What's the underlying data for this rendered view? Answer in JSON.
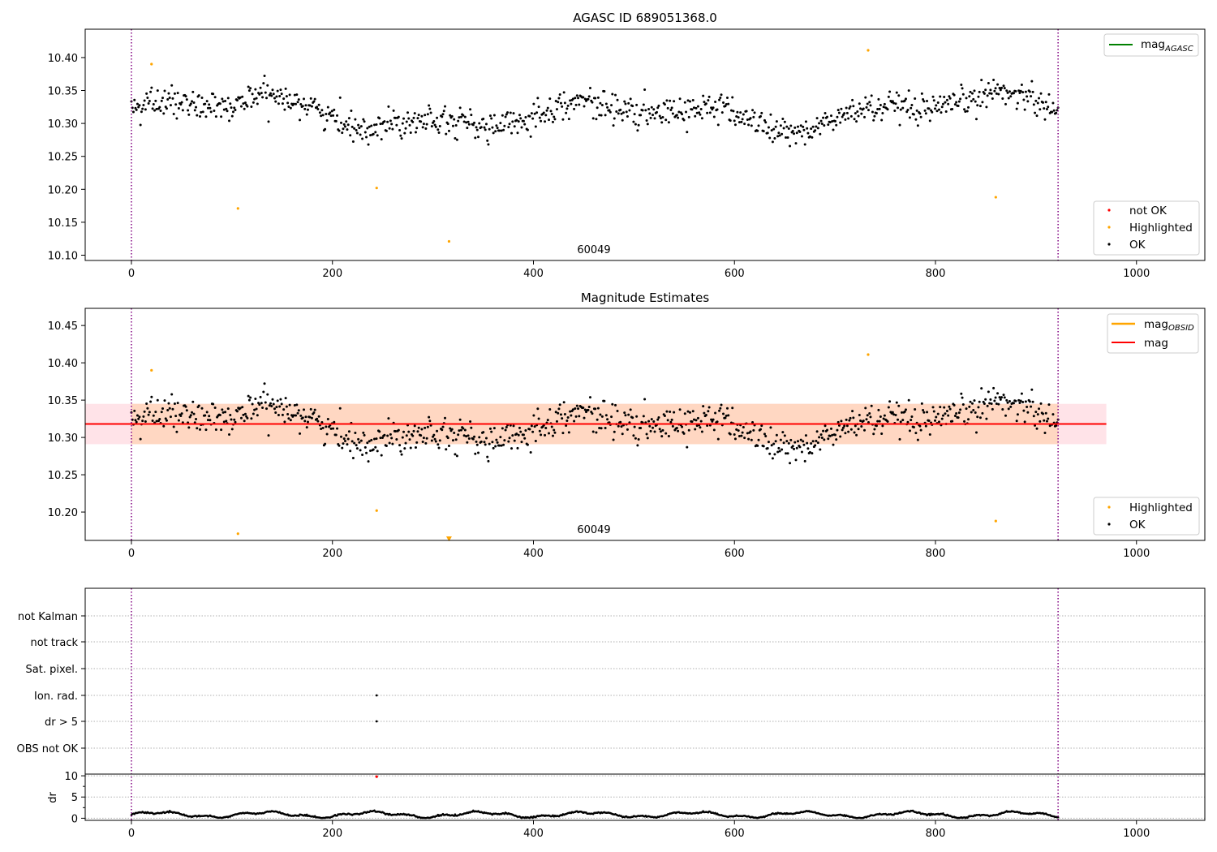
{
  "chart_data": [
    {
      "type": "scatter",
      "title": "AGASC ID 689051368.0",
      "xlim": [
        -46,
        1068
      ],
      "ylim": [
        10.092,
        10.443
      ],
      "xticks": [
        "0",
        "200",
        "400",
        "600",
        "800",
        "1000"
      ],
      "yticks": [
        "10.10",
        "10.15",
        "10.20",
        "10.25",
        "10.30",
        "10.35",
        "10.40"
      ],
      "obs_bounds": [
        0,
        922
      ],
      "obs_label": "60049",
      "obs_label_x": 460,
      "legend_top": [
        {
          "name": "mag",
          "sub": "AGASC",
          "color": "#008000"
        }
      ],
      "legend_bottom": [
        {
          "name": "not OK",
          "color": "#ff0000"
        },
        {
          "name": "Highlighted",
          "color": "#ffa500"
        },
        {
          "name": "OK",
          "color": "#000000"
        }
      ],
      "highlighted": [
        [
          20,
          10.39
        ],
        [
          106,
          10.171
        ],
        [
          244,
          10.202
        ],
        [
          316,
          10.121
        ],
        [
          733,
          10.411
        ],
        [
          860,
          10.188
        ]
      ],
      "series_model": {
        "mean": 10.318,
        "noise": 0.02,
        "n_points": 920,
        "x_start": 0,
        "x_end": 922
      }
    },
    {
      "type": "scatter",
      "title": "Magnitude Estimates",
      "xlim": [
        -46,
        1068
      ],
      "ylim": [
        10.162,
        10.473
      ],
      "xticks": [
        "0",
        "200",
        "400",
        "600",
        "800",
        "1000"
      ],
      "yticks": [
        "10.20",
        "10.25",
        "10.30",
        "10.35",
        "10.40",
        "10.45"
      ],
      "obs_bounds": [
        0,
        922
      ],
      "obs_label": "60049",
      "obs_label_x": 460,
      "mag_line": 10.318,
      "mag_band_outer": {
        "x": [
          -46,
          970
        ],
        "y": [
          10.291,
          10.345
        ],
        "color": "#ffe3e8"
      },
      "mag_band_inner": {
        "x": [
          0,
          922
        ],
        "y": [
          10.291,
          10.345
        ],
        "color": "#ffd7c2"
      },
      "legend_top": [
        {
          "name": "mag",
          "sub": "OBSID",
          "color": "#ffa500"
        },
        {
          "name": "mag",
          "sub": "",
          "color": "#ff0000"
        }
      ],
      "legend_bottom": [
        {
          "name": "Highlighted",
          "color": "#ffa500"
        },
        {
          "name": "OK",
          "color": "#000000"
        }
      ],
      "highlighted": [
        [
          20,
          10.39
        ],
        [
          106,
          10.171
        ],
        [
          244,
          10.202
        ],
        [
          733,
          10.411
        ],
        [
          860,
          10.188
        ]
      ],
      "off_scale_marker": [
        316,
        10.164
      ]
    },
    {
      "type": "scatter",
      "title": "",
      "xlim": [
        -46,
        1068
      ],
      "flag_labels": [
        "not Kalman",
        "not track",
        "Sat. pixel.",
        "Ion. rad.",
        "dr > 5",
        "OBS not OK"
      ],
      "flag_points": [
        {
          "flag": "Ion. rad.",
          "x": 244
        },
        {
          "flag": "dr > 5",
          "x": 244
        }
      ],
      "obs_bounds": [
        0,
        922
      ],
      "dr_ylabel": "dr",
      "dr_yticks": [
        "0",
        "5",
        "10"
      ],
      "dr_ylim": [
        -0.5,
        10.4
      ],
      "dr_outlier": [
        244,
        9.8
      ],
      "xticks": [
        "0",
        "200",
        "400",
        "600",
        "800",
        "1000"
      ]
    }
  ]
}
